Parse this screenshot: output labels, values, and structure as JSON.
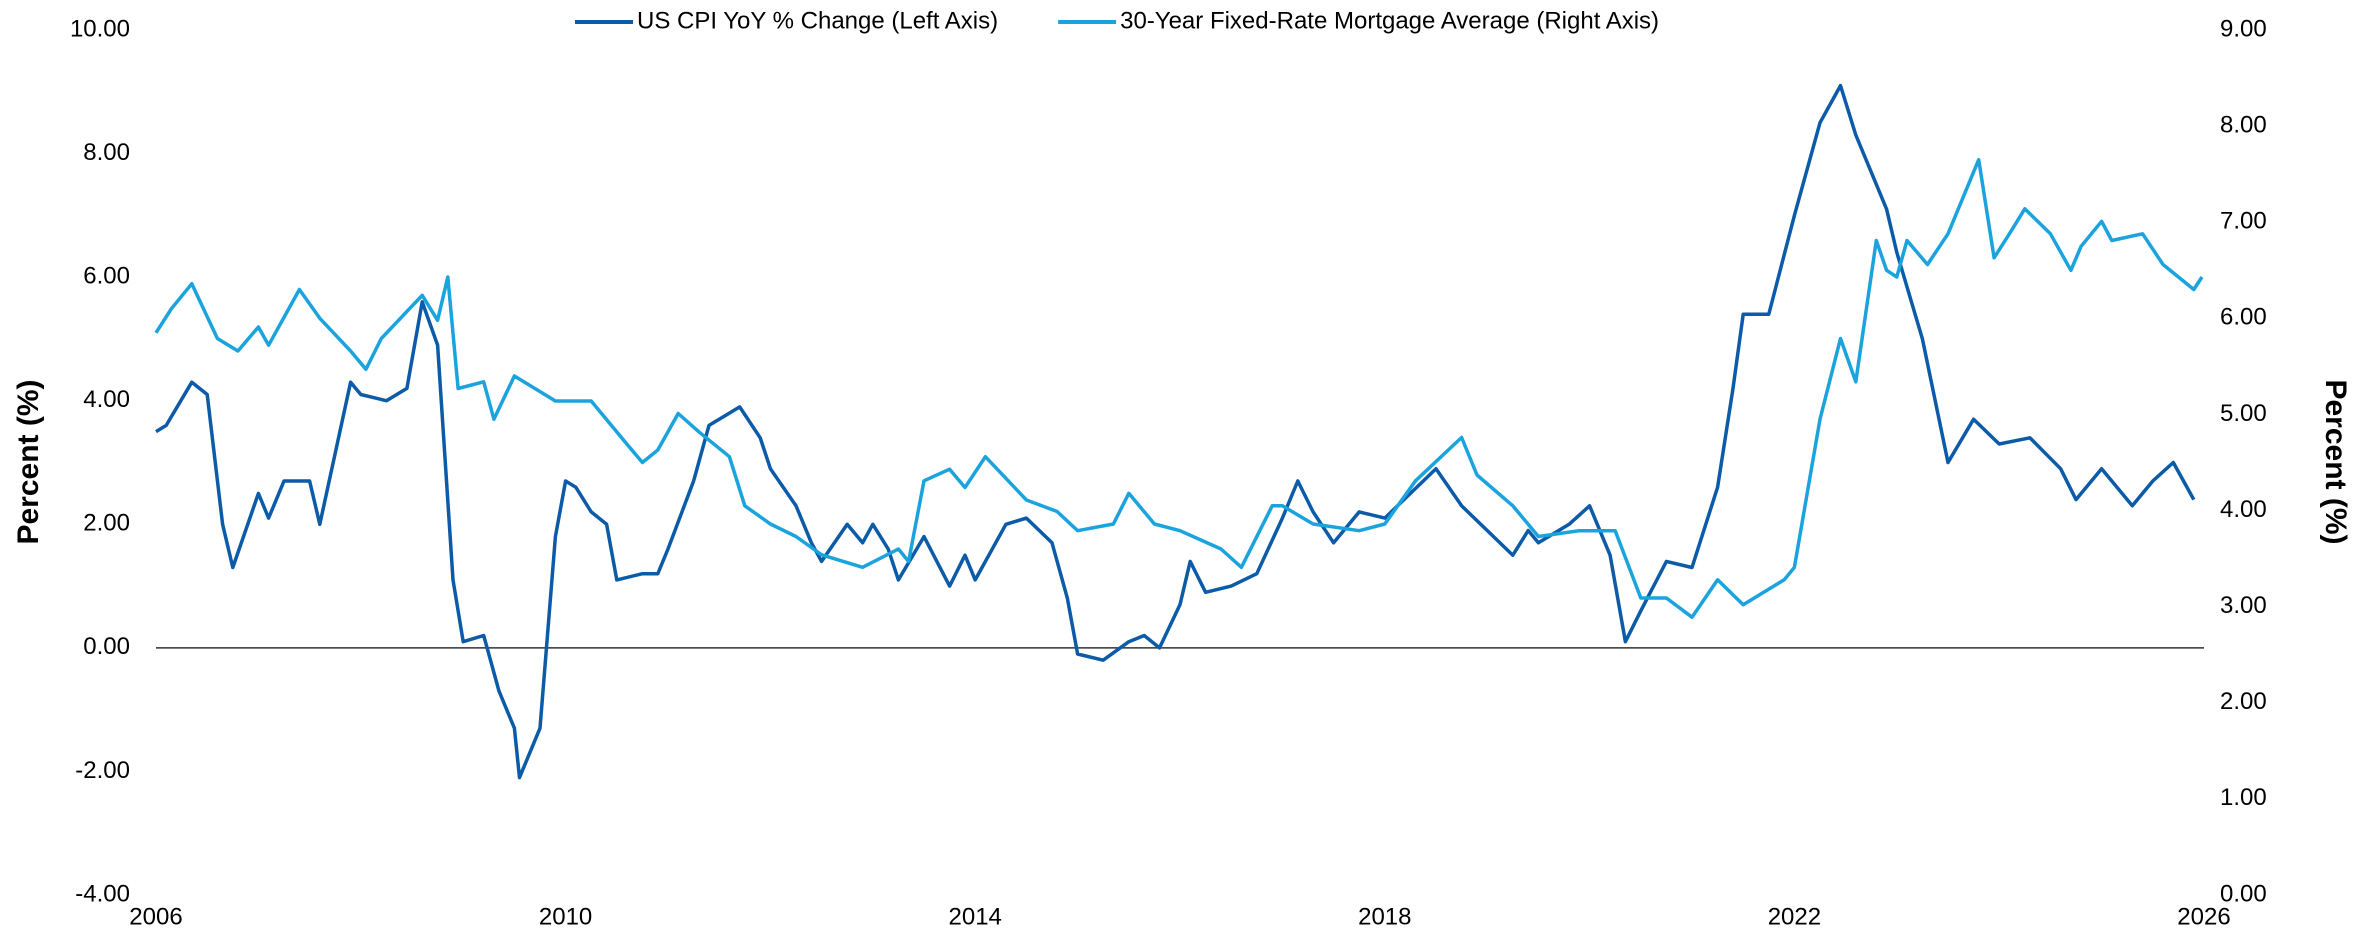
{
  "chart_data": {
    "type": "line",
    "y_label": "Percent (%)",
    "y2_label": "Percent (%)",
    "xlim": [
      2006,
      2026
    ],
    "xticks": [
      2006,
      2010,
      2014,
      2018,
      2022,
      2026
    ],
    "ylim": [
      -4,
      10
    ],
    "yticks": [
      {
        "value": -4,
        "label": "-4.00"
      },
      {
        "value": -2,
        "label": "-2.00"
      },
      {
        "value": 0,
        "label": "0.00"
      },
      {
        "value": 2,
        "label": "2.00"
      },
      {
        "value": 4,
        "label": "4.00"
      },
      {
        "value": 6,
        "label": "6.00"
      },
      {
        "value": 8,
        "label": "8.00"
      },
      {
        "value": 10,
        "label": "10.00"
      }
    ],
    "y2lim": [
      0,
      9
    ],
    "y2ticks": [
      {
        "value": 0,
        "label": "0.00"
      },
      {
        "value": 1,
        "label": "1.00"
      },
      {
        "value": 2,
        "label": "2.00"
      },
      {
        "value": 3,
        "label": "3.00"
      },
      {
        "value": 4,
        "label": "4.00"
      },
      {
        "value": 5,
        "label": "5.00"
      },
      {
        "value": 6,
        "label": "6.00"
      },
      {
        "value": 7,
        "label": "7.00"
      },
      {
        "value": 8,
        "label": "8.00"
      },
      {
        "value": 9,
        "label": "9.00"
      }
    ],
    "legend": "top",
    "series": [
      {
        "name": "US CPI YoY % Change (Left Axis)",
        "color": "#0b5ba8",
        "axis": "y",
        "x": [
          2006.0,
          2006.1,
          2006.35,
          2006.5,
          2006.65,
          2006.75,
          2007.0,
          2007.1,
          2007.25,
          2007.5,
          2007.6,
          2007.9,
          2008.0,
          2008.25,
          2008.45,
          2008.6,
          2008.75,
          2008.9,
          2009.0,
          2009.2,
          2009.35,
          2009.5,
          2009.55,
          2009.75,
          2009.9,
          2010.0,
          2010.1,
          2010.25,
          2010.4,
          2010.5,
          2010.75,
          2010.9,
          2011.0,
          2011.25,
          2011.4,
          2011.6,
          2011.7,
          2011.9,
          2012.0,
          2012.25,
          2012.4,
          2012.5,
          2012.75,
          2012.9,
          2013.0,
          2013.15,
          2013.25,
          2013.5,
          2013.75,
          2013.9,
          2014.0,
          2014.3,
          2014.5,
          2014.75,
          2014.9,
          2015.0,
          2015.25,
          2015.5,
          2015.65,
          2015.8,
          2016.0,
          2016.1,
          2016.25,
          2016.5,
          2016.75,
          2017.0,
          2017.15,
          2017.3,
          2017.5,
          2017.75,
          2018.0,
          2018.25,
          2018.5,
          2018.75,
          2019.0,
          2019.25,
          2019.4,
          2019.5,
          2019.8,
          2020.0,
          2020.2,
          2020.35,
          2020.5,
          2020.75,
          2021.0,
          2021.25,
          2021.4,
          2021.5,
          2021.75,
          2022.0,
          2022.25,
          2022.45,
          2022.6,
          2022.75,
          2022.9,
          2023.0,
          2023.25,
          2023.5,
          2023.75,
          2024.0,
          2024.3,
          2024.6,
          2024.75,
          2025.0,
          2025.3,
          2025.5,
          2025.7,
          2025.9
        ],
        "values": [
          3.5,
          3.6,
          4.3,
          4.1,
          2.0,
          1.3,
          2.5,
          2.1,
          2.7,
          2.7,
          2.0,
          4.3,
          4.1,
          4.0,
          4.2,
          5.6,
          4.9,
          1.1,
          0.1,
          0.2,
          -0.7,
          -1.3,
          -2.1,
          -1.3,
          1.8,
          2.7,
          2.6,
          2.2,
          2.0,
          1.1,
          1.2,
          1.2,
          1.6,
          2.7,
          3.6,
          3.8,
          3.9,
          3.4,
          2.9,
          2.3,
          1.7,
          1.4,
          2.0,
          1.7,
          2.0,
          1.6,
          1.1,
          1.8,
          1.0,
          1.5,
          1.1,
          2.0,
          2.1,
          1.7,
          0.8,
          -0.1,
          -0.2,
          0.1,
          0.2,
          0.0,
          0.7,
          1.4,
          0.9,
          1.0,
          1.2,
          2.1,
          2.7,
          2.2,
          1.7,
          2.2,
          2.1,
          2.5,
          2.9,
          2.3,
          1.9,
          1.5,
          1.9,
          1.7,
          2.0,
          2.3,
          1.5,
          0.1,
          0.6,
          1.4,
          1.3,
          2.6,
          4.2,
          5.4,
          5.4,
          7.0,
          8.5,
          9.1,
          8.3,
          7.7,
          7.1,
          6.4,
          5.0,
          3.0,
          3.7,
          3.3,
          3.4,
          2.9,
          2.4,
          2.9,
          2.3,
          2.7,
          3.0,
          2.4
        ]
      },
      {
        "name": "30-Year Fixed-Rate Mortgage Average (Right Axis)",
        "color": "#1ba3dd",
        "axis": "y2",
        "x": [
          2006.0,
          2006.15,
          2006.35,
          2006.6,
          2006.8,
          2007.0,
          2007.1,
          2007.4,
          2007.6,
          2007.9,
          2008.05,
          2008.2,
          2008.6,
          2008.75,
          2008.85,
          2008.95,
          2009.2,
          2009.3,
          2009.5,
          2009.9,
          2010.0,
          2010.25,
          2010.6,
          2010.75,
          2010.9,
          2011.1,
          2011.3,
          2011.6,
          2011.75,
          2012.0,
          2012.25,
          2012.5,
          2012.9,
          2013.25,
          2013.35,
          2013.5,
          2013.75,
          2013.9,
          2014.1,
          2014.5,
          2014.8,
          2015.0,
          2015.35,
          2015.5,
          2015.75,
          2016.0,
          2016.4,
          2016.6,
          2016.9,
          2017.0,
          2017.3,
          2017.75,
          2018.0,
          2018.3,
          2018.75,
          2018.9,
          2019.25,
          2019.5,
          2019.9,
          2020.25,
          2020.5,
          2020.75,
          2021.0,
          2021.25,
          2021.5,
          2021.9,
          2022.0,
          2022.25,
          2022.45,
          2022.6,
          2022.8,
          2022.9,
          2023.0,
          2023.1,
          2023.3,
          2023.5,
          2023.8,
          2023.95,
          2024.1,
          2024.25,
          2024.5,
          2024.7,
          2024.8,
          2025.0,
          2025.1,
          2025.4,
          2025.6,
          2025.9,
          2025.98
        ],
        "values": [
          5.85,
          6.1,
          6.36,
          5.79,
          5.66,
          5.91,
          5.72,
          6.3,
          6.0,
          5.66,
          5.47,
          5.79,
          6.24,
          5.98,
          6.43,
          5.27,
          5.34,
          4.95,
          5.4,
          5.14,
          5.14,
          5.14,
          4.69,
          4.5,
          4.63,
          5.01,
          4.82,
          4.56,
          4.05,
          3.86,
          3.73,
          3.54,
          3.41,
          3.6,
          3.47,
          4.31,
          4.43,
          4.24,
          4.56,
          4.11,
          3.99,
          3.79,
          3.86,
          4.18,
          3.86,
          3.79,
          3.6,
          3.41,
          4.05,
          4.05,
          3.86,
          3.79,
          3.86,
          4.31,
          4.76,
          4.37,
          4.05,
          3.73,
          3.79,
          3.79,
          3.09,
          3.09,
          2.89,
          3.28,
          3.02,
          3.28,
          3.41,
          4.95,
          5.79,
          5.34,
          6.81,
          6.5,
          6.43,
          6.81,
          6.56,
          6.88,
          7.65,
          6.63,
          6.88,
          7.14,
          6.88,
          6.5,
          6.75,
          7.01,
          6.81,
          6.88,
          6.56,
          6.3,
          6.43
        ]
      }
    ]
  }
}
